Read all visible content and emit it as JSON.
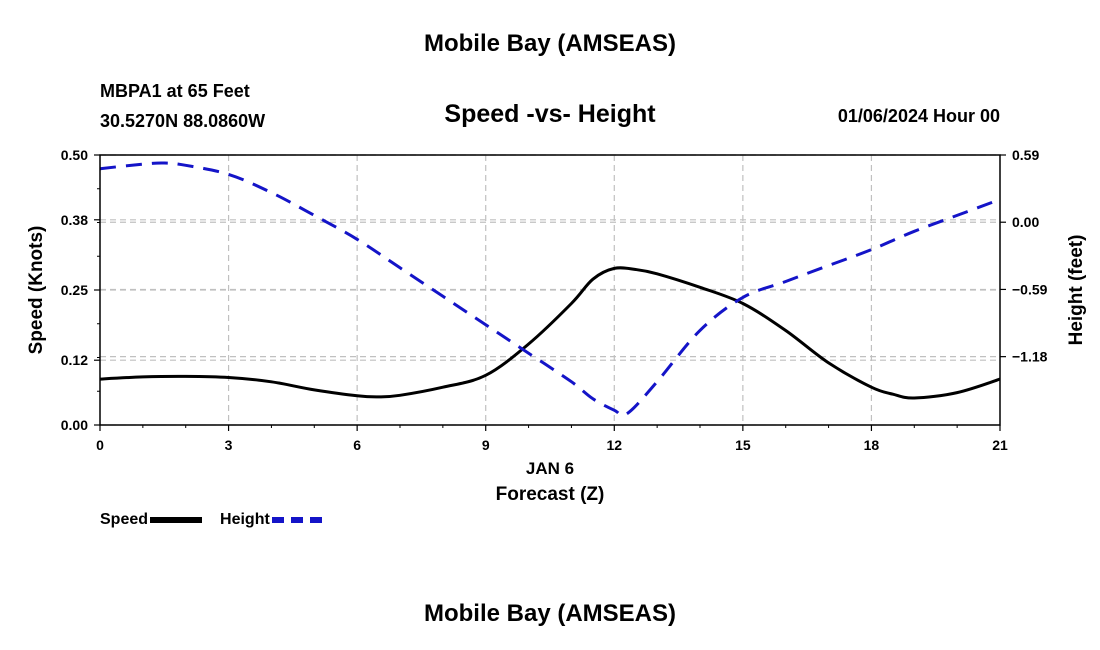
{
  "header": {
    "title": "Mobile Bay (AMSEAS)",
    "station_line1": "MBPA1 at 65 Feet",
    "station_line2": "30.5270N  88.0860W",
    "subtitle": "Speed -vs- Height",
    "datetime": "01/06/2024 Hour 00"
  },
  "footer": {
    "title": "Mobile Bay (AMSEAS)"
  },
  "legend": {
    "speed": "Speed",
    "height": "Height"
  },
  "colors": {
    "speed": "#000000",
    "height": "#1414c8",
    "grid": "#c0c0c0"
  },
  "chart_data": {
    "type": "line",
    "title": "Speed -vs- Height",
    "xlabel": "Forecast (Z)",
    "xlabel_date": "JAN 6",
    "ylabel_left": "Speed (Knots)",
    "ylabel_right": "Height (feet)",
    "xlim": [
      0,
      21
    ],
    "xticks": [
      0,
      3,
      6,
      9,
      12,
      15,
      18,
      21
    ],
    "ylim_left": [
      0,
      0.5
    ],
    "yticks_left": [
      "0.00",
      "0.12",
      "0.25",
      "0.38",
      "0.50"
    ],
    "ylim_right": [
      -1.78,
      0.59
    ],
    "yticks_right": [
      "0.59",
      "0.00",
      "−0.59",
      "−1.18"
    ],
    "grid": true,
    "legend_position": "bottom-left",
    "series": [
      {
        "name": "Speed",
        "axis": "left",
        "style": "solid",
        "x": [
          0,
          1,
          2,
          3,
          4,
          5,
          6,
          6.5,
          7,
          8,
          9,
          10,
          11,
          11.5,
          12,
          12.5,
          13,
          14,
          15,
          16,
          17,
          18,
          18.5,
          19,
          20,
          21
        ],
        "values": [
          0.085,
          0.089,
          0.09,
          0.088,
          0.08,
          0.065,
          0.054,
          0.052,
          0.055,
          0.07,
          0.092,
          0.15,
          0.225,
          0.27,
          0.29,
          0.288,
          0.28,
          0.255,
          0.225,
          0.175,
          0.115,
          0.07,
          0.057,
          0.05,
          0.06,
          0.085
        ]
      },
      {
        "name": "Height",
        "axis": "right",
        "style": "dashed",
        "x": [
          0,
          1,
          1.5,
          2,
          3,
          4,
          5,
          6,
          7,
          8,
          9,
          10,
          11,
          11.5,
          12,
          12.3,
          13,
          14,
          15,
          16,
          17,
          18,
          19,
          20,
          21
        ],
        "values": [
          0.47,
          0.51,
          0.52,
          0.5,
          0.42,
          0.26,
          0.06,
          -0.15,
          -0.4,
          -0.65,
          -0.9,
          -1.15,
          -1.4,
          -1.55,
          -1.65,
          -1.68,
          -1.4,
          -0.95,
          -0.66,
          -0.52,
          -0.38,
          -0.24,
          -0.08,
          0.06,
          0.2
        ]
      }
    ]
  }
}
